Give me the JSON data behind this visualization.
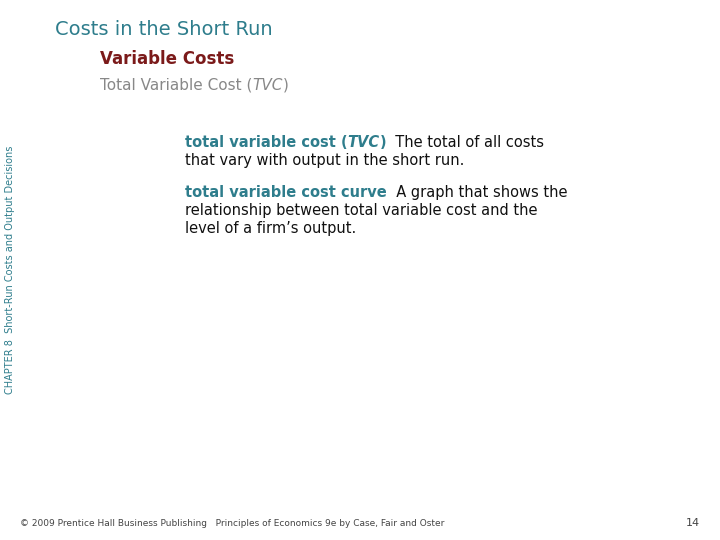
{
  "title": "Costs in the Short Run",
  "title_color": "#2e7d8c",
  "subtitle": "Variable Costs",
  "subtitle_color": "#7b1a1a",
  "section_heading_normal1": "Total Variable Cost (",
  "section_heading_italic": "TVC",
  "section_heading_normal2": ")",
  "section_heading_color": "#888888",
  "def1_bold_part1": "total variable cost (",
  "def1_bold_italic": "TVC",
  "def1_bold_part2": ")",
  "def1_color": "#2e7d8c",
  "def1_rest_line1": "  The total of all costs",
  "def1_rest_line2": "that vary with output in the short run.",
  "def2_bold": "total variable cost curve",
  "def2_color": "#2e7d8c",
  "def2_rest_line1": "  A graph that shows the",
  "def2_rest_line2": "relationship between total variable cost and the",
  "def2_rest_line3": "level of a firm’s output.",
  "sidebar_text": "CHAPTER 8  Short-Run Costs and Output Decisions",
  "sidebar_color": "#2e7d8c",
  "footer_text": "© 2009 Prentice Hall Business Publishing   Principles of Economics 9e by Case, Fair and Oster",
  "footer_page": "14",
  "footer_color": "#444444",
  "bg_color": "#ffffff",
  "body_text_color": "#111111",
  "title_fontsize": 14,
  "subtitle_fontsize": 12,
  "section_fontsize": 11,
  "body_fontsize": 10.5,
  "sidebar_fontsize": 7,
  "footer_fontsize": 6.5
}
